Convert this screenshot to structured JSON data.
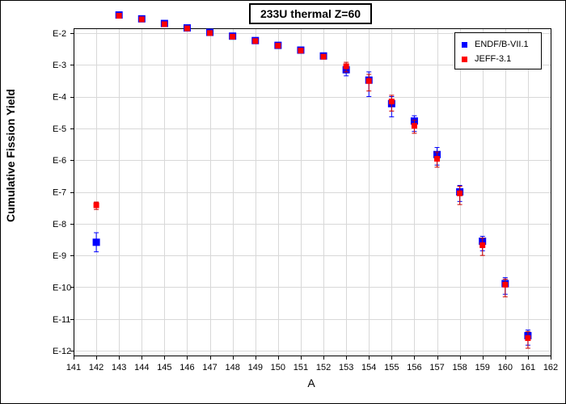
{
  "chart_data": {
    "type": "scatter",
    "title": "233U thermal Z=60",
    "xlabel": "A",
    "ylabel": "Cumulative Fission Yield",
    "xlim": [
      141,
      162
    ],
    "x_ticks": [
      "141",
      "142",
      "143",
      "144",
      "145",
      "146",
      "147",
      "148",
      "149",
      "150",
      "151",
      "152",
      "153",
      "154",
      "155",
      "156",
      "157",
      "158",
      "159",
      "160",
      "161",
      "162"
    ],
    "y_scale": "log",
    "ylim": [
      1e-12,
      0.1
    ],
    "y_ticks": [
      {
        "label": "E-2",
        "value": 0.01
      },
      {
        "label": "E-3",
        "value": 0.001
      },
      {
        "label": "E-4",
        "value": 0.0001
      },
      {
        "label": "E-5",
        "value": 1e-05
      },
      {
        "label": "E-6",
        "value": 1e-06
      },
      {
        "label": "E-7",
        "value": 1e-07
      },
      {
        "label": "E-8",
        "value": 1e-08
      },
      {
        "label": "E-9",
        "value": 1e-09
      },
      {
        "label": "E-10",
        "value": 1e-10
      },
      {
        "label": "E-11",
        "value": 1e-11
      },
      {
        "label": "E-12",
        "value": 1e-12
      }
    ],
    "grid": true,
    "legend_position": "top-right",
    "series": [
      {
        "name": "ENDF/B-VII.1",
        "color": "#0000ff",
        "points": [
          {
            "x": 142,
            "y": 2.6e-09,
            "err_lo": 1.3e-09,
            "err_hi": 5.2e-09
          },
          {
            "x": 143,
            "y": 0.037,
            "err_lo": 0.033,
            "err_hi": 0.041
          },
          {
            "x": 144,
            "y": 0.028,
            "err_lo": 0.026,
            "err_hi": 0.03
          },
          {
            "x": 145,
            "y": 0.02,
            "err_lo": 0.019,
            "err_hi": 0.021
          },
          {
            "x": 146,
            "y": 0.0145,
            "err_lo": 0.0138,
            "err_hi": 0.0152
          },
          {
            "x": 147,
            "y": 0.0105,
            "err_lo": 0.01,
            "err_hi": 0.011
          },
          {
            "x": 148,
            "y": 0.008,
            "err_lo": 0.0076,
            "err_hi": 0.0084
          },
          {
            "x": 149,
            "y": 0.0058,
            "err_lo": 0.0054,
            "err_hi": 0.0062
          },
          {
            "x": 150,
            "y": 0.0041,
            "err_lo": 0.0038,
            "err_hi": 0.0044
          },
          {
            "x": 151,
            "y": 0.0029,
            "err_lo": 0.0027,
            "err_hi": 0.0031
          },
          {
            "x": 152,
            "y": 0.0019,
            "err_lo": 0.0017,
            "err_hi": 0.0021
          },
          {
            "x": 153,
            "y": 0.0007,
            "err_lo": 0.00045,
            "err_hi": 0.001
          },
          {
            "x": 154,
            "y": 0.00033,
            "err_lo": 0.0001,
            "err_hi": 0.0006
          },
          {
            "x": 155,
            "y": 6e-05,
            "err_lo": 2.3e-05,
            "err_hi": 0.0001
          },
          {
            "x": 156,
            "y": 1.7e-05,
            "err_lo": 8e-06,
            "err_hi": 2.5e-05
          },
          {
            "x": 157,
            "y": 1.5e-06,
            "err_lo": 7e-07,
            "err_hi": 2.5e-06
          },
          {
            "x": 158,
            "y": 1e-07,
            "err_lo": 5e-08,
            "err_hi": 1.6e-07
          },
          {
            "x": 159,
            "y": 2.8e-09,
            "err_lo": 1.4e-09,
            "err_hi": 4e-09
          },
          {
            "x": 160,
            "y": 1.3e-10,
            "err_lo": 6e-11,
            "err_hi": 2e-10
          },
          {
            "x": 161,
            "y": 3e-12,
            "err_lo": 1.5e-12,
            "err_hi": 4.5e-12
          }
        ]
      },
      {
        "name": "JEFF-3.1",
        "color": "#ff0000",
        "points": [
          {
            "x": 142,
            "y": 3.8e-08,
            "err_lo": 2.8e-08,
            "err_hi": 4.8e-08
          },
          {
            "x": 143,
            "y": 0.035,
            "err_lo": 0.032,
            "err_hi": 0.038
          },
          {
            "x": 144,
            "y": 0.027,
            "err_lo": 0.025,
            "err_hi": 0.029
          },
          {
            "x": 145,
            "y": 0.019,
            "err_lo": 0.018,
            "err_hi": 0.02
          },
          {
            "x": 146,
            "y": 0.014,
            "err_lo": 0.0133,
            "err_hi": 0.0147
          },
          {
            "x": 147,
            "y": 0.01,
            "err_lo": 0.0095,
            "err_hi": 0.0105
          },
          {
            "x": 148,
            "y": 0.0077,
            "err_lo": 0.0073,
            "err_hi": 0.0081
          },
          {
            "x": 149,
            "y": 0.0056,
            "err_lo": 0.0052,
            "err_hi": 0.006
          },
          {
            "x": 150,
            "y": 0.004,
            "err_lo": 0.0037,
            "err_hi": 0.0043
          },
          {
            "x": 151,
            "y": 0.0028,
            "err_lo": 0.0026,
            "err_hi": 0.003
          },
          {
            "x": 152,
            "y": 0.0018,
            "err_lo": 0.0016,
            "err_hi": 0.002
          },
          {
            "x": 153,
            "y": 0.0009,
            "err_lo": 0.0006,
            "err_hi": 0.0012
          },
          {
            "x": 154,
            "y": 0.00031,
            "err_lo": 0.00015,
            "err_hi": 0.0005
          },
          {
            "x": 155,
            "y": 7e-05,
            "err_lo": 3.5e-05,
            "err_hi": 0.00011
          },
          {
            "x": 156,
            "y": 1.2e-05,
            "err_lo": 7e-06,
            "err_hi": 1.8e-05
          },
          {
            "x": 157,
            "y": 1.1e-06,
            "err_lo": 6e-07,
            "err_hi": 1.8e-06
          },
          {
            "x": 158,
            "y": 9e-08,
            "err_lo": 4e-08,
            "err_hi": 1.5e-07
          },
          {
            "x": 159,
            "y": 2.1e-09,
            "err_lo": 1e-09,
            "err_hi": 3.5e-09
          },
          {
            "x": 160,
            "y": 1.2e-10,
            "err_lo": 5e-11,
            "err_hi": 1.8e-10
          },
          {
            "x": 161,
            "y": 2.5e-12,
            "err_lo": 1.2e-12,
            "err_hi": 4e-12
          }
        ]
      }
    ]
  }
}
